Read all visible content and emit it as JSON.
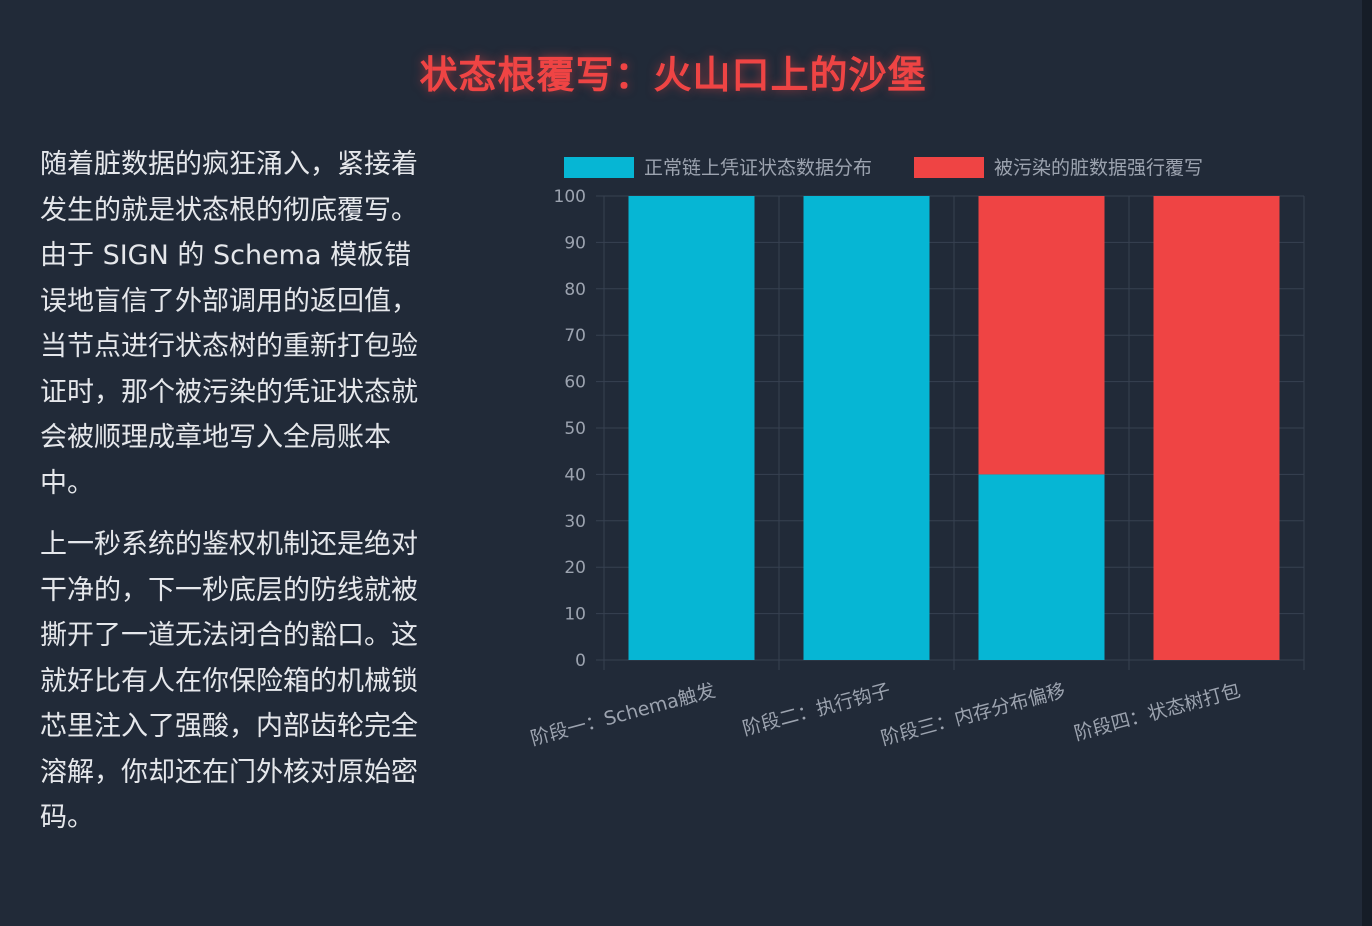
{
  "title": "状态根覆写：火山口上的沙堡",
  "paragraphs": [
    "随着脏数据的疯狂涌入，紧接着发生的就是状态根的彻底覆写。由于 SIGN 的 Schema 模板错误地盲信了外部调用的返回值，当节点进行状态树的重新打包验证时，那个被污染的凭证状态就会被顺理成章地写入全局账本中。",
    "上一秒系统的鉴权机制还是绝对干净的，下一秒底层的防线就被撕开了一道无法闭合的豁口。这就好比有人在你保险箱的机械锁芯里注入了强酸，内部齿轮完全溶解，你却还在门外核对原始密码。"
  ],
  "chart_data": {
    "type": "bar",
    "stacked": true,
    "categories": [
      "阶段一：Schema触发",
      "阶段二：执行钩子",
      "阶段三：内存分布偏移",
      "阶段四：状态树打包"
    ],
    "series": [
      {
        "name": "正常链上凭证状态数据分布",
        "values": [
          100,
          100,
          40,
          0
        ],
        "color": "#06b6d4"
      },
      {
        "name": "被污染的脏数据强行覆写",
        "values": [
          0,
          0,
          60,
          100
        ],
        "color": "#ef4444"
      }
    ],
    "ylim": [
      0,
      100
    ],
    "yticks": [
      0,
      10,
      20,
      30,
      40,
      50,
      60,
      70,
      80,
      90,
      100
    ],
    "grid": true,
    "legend": "top"
  }
}
